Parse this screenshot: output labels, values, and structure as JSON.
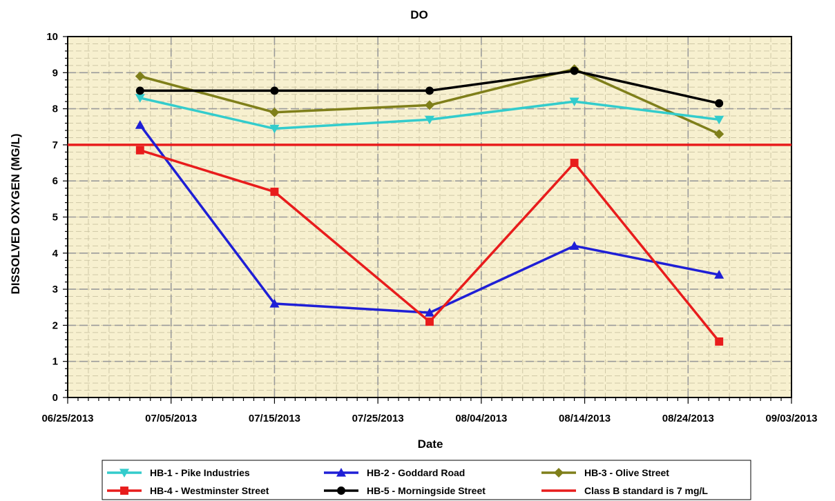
{
  "chart_data": {
    "type": "line",
    "title": "DO",
    "xlabel": "Date",
    "ylabel": "DISSOLVED OXYGEN (MG/L)",
    "ylim": [
      0,
      10
    ],
    "yticks": [
      "0",
      "1",
      "2",
      "3",
      "4",
      "5",
      "6",
      "7",
      "8",
      "9",
      "10"
    ],
    "xlim": [
      "06/25/2013",
      "09/03/2013"
    ],
    "xticks": [
      "06/25/2013",
      "07/05/2013",
      "07/15/2013",
      "07/25/2013",
      "08/04/2013",
      "08/14/2013",
      "08/24/2013",
      "09/03/2013"
    ],
    "grid": true,
    "legend_position": "bottom",
    "plot_background": "#f7f0cf",
    "x": [
      "07/02/2013",
      "07/15/2013",
      "07/30/2013",
      "08/13/2013",
      "08/27/2013"
    ],
    "series": [
      {
        "name": "HB-1 - Pike Industries",
        "color": "#33cccc",
        "marker": "triangle-down",
        "values": [
          8.3,
          7.45,
          7.7,
          8.2,
          7.7
        ]
      },
      {
        "name": "HB-2 - Goddard Road",
        "color": "#1f1fd6",
        "marker": "triangle-up",
        "values": [
          7.55,
          2.6,
          2.35,
          4.2,
          3.4
        ]
      },
      {
        "name": "HB-3 - Olive Street",
        "color": "#7f7f1a",
        "marker": "diamond",
        "values": [
          8.9,
          7.9,
          8.1,
          9.1,
          7.3
        ]
      },
      {
        "name": "HB-4 - Westminster Street",
        "color": "#e81c1c",
        "marker": "square",
        "values": [
          6.85,
          5.7,
          2.1,
          6.5,
          1.55
        ]
      },
      {
        "name": "HB-5 - Morningside Street",
        "color": "#000000",
        "marker": "circle",
        "values": [
          8.5,
          8.5,
          8.5,
          9.05,
          8.15
        ]
      }
    ],
    "reference_line": {
      "name": "Class B standard is 7 mg/L",
      "color": "#e81c1c",
      "value": 7
    }
  }
}
